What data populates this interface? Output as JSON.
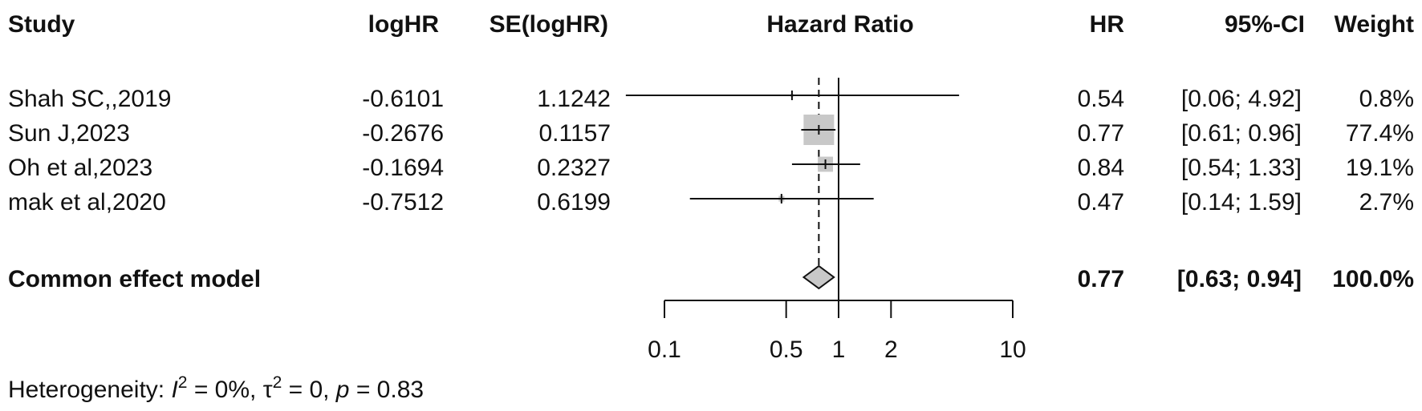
{
  "chart_data": {
    "type": "forest",
    "title": "",
    "columns": {
      "study": "Study",
      "loghr": "logHR",
      "se": "SE(logHR)",
      "plot": "Hazard Ratio",
      "hr": "HR",
      "ci": "95%-CI",
      "weight": "Weight"
    },
    "studies": [
      {
        "name": "Shah SC,,2019",
        "loghr": "-0.6101",
        "se": "1.1242",
        "hr": 0.54,
        "lower": 0.06,
        "upper": 4.92,
        "hr_text": "0.54",
        "ci_text": "[0.06; 4.92]",
        "weight": 0.8,
        "weight_text": "0.8%"
      },
      {
        "name": "Sun J,2023",
        "loghr": "-0.2676",
        "se": "0.1157",
        "hr": 0.77,
        "lower": 0.61,
        "upper": 0.96,
        "hr_text": "0.77",
        "ci_text": "[0.61; 0.96]",
        "weight": 77.4,
        "weight_text": "77.4%"
      },
      {
        "name": "Oh et al,2023",
        "loghr": "-0.1694",
        "se": "0.2327",
        "hr": 0.84,
        "lower": 0.54,
        "upper": 1.33,
        "hr_text": "0.84",
        "ci_text": "[0.54; 1.33]",
        "weight": 19.1,
        "weight_text": "19.1%"
      },
      {
        "name": "mak et al,2020",
        "loghr": "-0.7512",
        "se": "0.6199",
        "hr": 0.47,
        "lower": 0.14,
        "upper": 1.59,
        "hr_text": "0.47",
        "ci_text": "[0.14; 1.59]",
        "weight": 2.7,
        "weight_text": "2.7%"
      }
    ],
    "pooled": {
      "name": "Common effect model",
      "hr": 0.77,
      "lower": 0.63,
      "upper": 0.94,
      "hr_text": "0.77",
      "ci_text": "[0.63; 0.94]",
      "weight_text": "100.0%"
    },
    "x_axis": {
      "scale": "log",
      "range": [
        0.1,
        10
      ],
      "ticks": [
        0.1,
        0.5,
        1,
        2,
        10
      ],
      "tick_labels": [
        "0.1",
        "0.5",
        "1",
        "2",
        "10"
      ],
      "reference_line": 1
    },
    "heterogeneity": {
      "prefix": "Heterogeneity: ",
      "i2_symbol": "I",
      "i2_value": " = 0%, ",
      "tau2_symbol": "τ",
      "tau2_value": " = 0, ",
      "p_symbol": "p",
      "p_value": " = 0.83"
    },
    "colors": {
      "box": "#c8c8c8",
      "diamond": "#c8c8c8",
      "line": "#111111"
    }
  }
}
